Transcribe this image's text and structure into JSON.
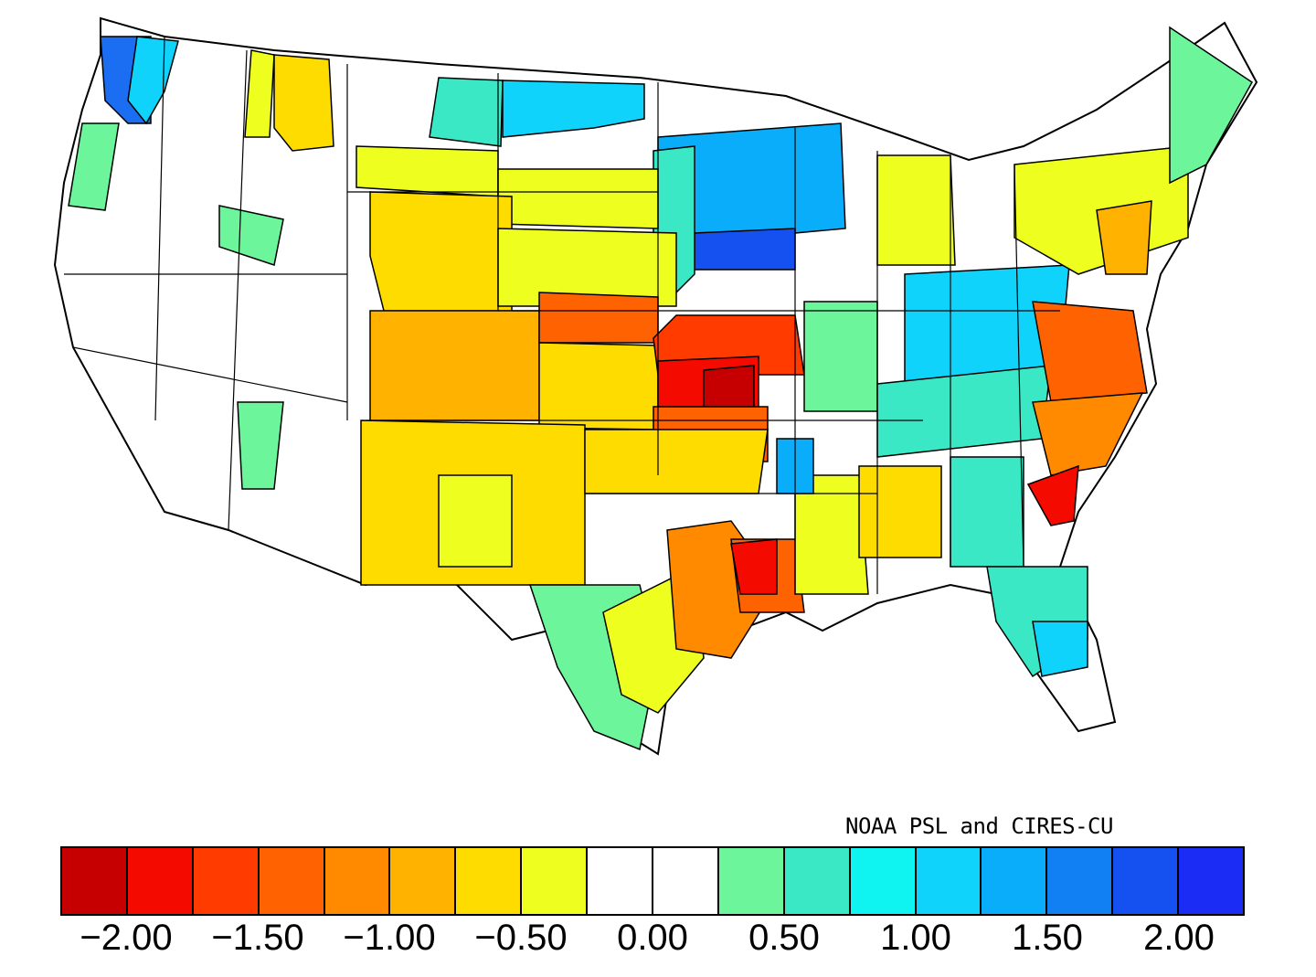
{
  "credit": "NOAA PSL and CIRES-CU",
  "legend": {
    "colors": [
      "#c60000",
      "#f50a00",
      "#ff3b00",
      "#ff6200",
      "#ff8a00",
      "#ffb200",
      "#ffdc00",
      "#eeff20",
      "#ffffff",
      "#ffffff",
      "#6cf59a",
      "#3be8c6",
      "#10f4f1",
      "#10d3fb",
      "#0aadfa",
      "#1180f2",
      "#1551f0",
      "#1b2df5"
    ],
    "labels": [
      "−2.00",
      "−1.50",
      "−1.00",
      "−0.50",
      "0.00",
      "0.50",
      "1.00",
      "1.50",
      "2.00"
    ]
  },
  "regions": [
    {
      "name": "washington-coast",
      "color": "#1b6df2"
    },
    {
      "name": "washington-puget",
      "color": "#10d3fb"
    },
    {
      "name": "oregon-coast",
      "color": "#6cf59a"
    },
    {
      "name": "idaho-north",
      "color": "#eeff20"
    },
    {
      "name": "montana-west",
      "color": "#ffdc00"
    },
    {
      "name": "montana-east",
      "color": "#3be8c6"
    },
    {
      "name": "north-dakota",
      "color": "#10d3fb"
    },
    {
      "name": "minnesota",
      "color": "#0aadfa"
    },
    {
      "name": "iowa",
      "color": "#1551f0"
    },
    {
      "name": "wyoming",
      "color": "#ffdc00"
    },
    {
      "name": "colorado",
      "color": "#ffb200"
    },
    {
      "name": "new-mexico",
      "color": "#ffdc00"
    },
    {
      "name": "kansas",
      "color": "#ffdc00"
    },
    {
      "name": "missouri",
      "color": "#f50a00"
    },
    {
      "name": "oklahoma",
      "color": "#ffb200"
    },
    {
      "name": "texas-west",
      "color": "#6cf59a"
    },
    {
      "name": "louisiana",
      "color": "#ff6200"
    },
    {
      "name": "ohio-valley",
      "color": "#10d3fb"
    },
    {
      "name": "carolinas",
      "color": "#ff8a00"
    },
    {
      "name": "south-carolina",
      "color": "#f50a00"
    },
    {
      "name": "georgia-florida",
      "color": "#3be8c6"
    },
    {
      "name": "new-england",
      "color": "#6cf59a"
    }
  ]
}
